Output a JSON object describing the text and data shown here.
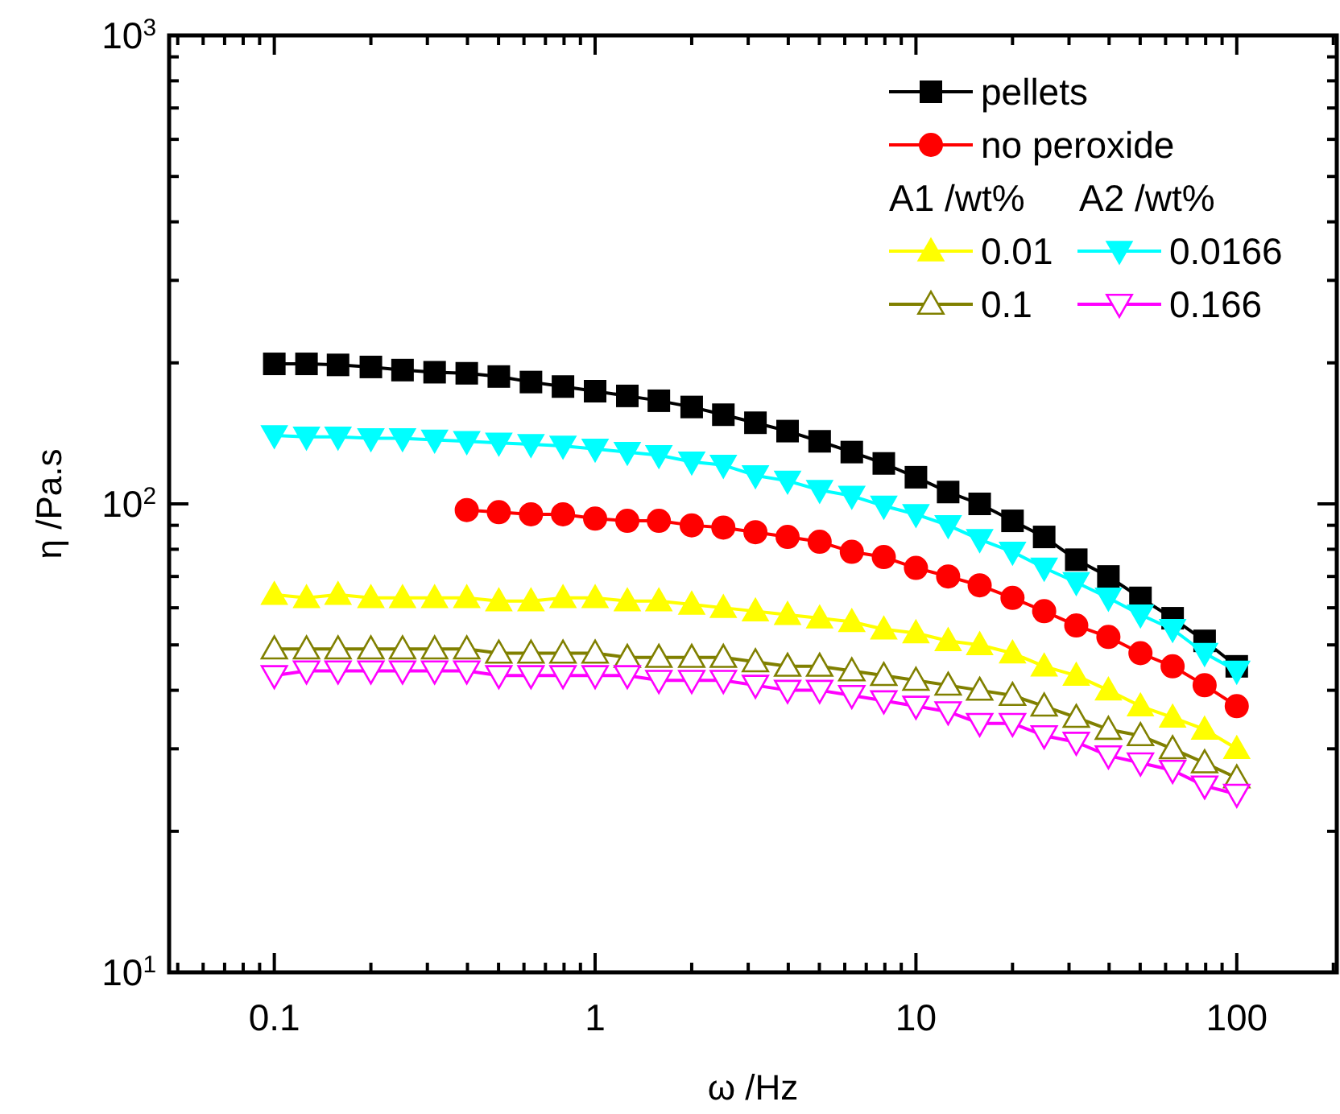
{
  "chart_data": {
    "type": "line",
    "xlabel": "ω /Hz",
    "ylabel": "η /Pa.s",
    "log": "xy",
    "legend": "top right",
    "line_style": "solid",
    "annotations": [
      "A1 /wt%",
      "A2 /wt%"
    ],
    "xlim": [
      0.047,
      205
    ],
    "ylim": [
      10,
      1000
    ],
    "xticks": [
      0.1,
      1,
      10,
      100,
      {
        "value": 0.05,
        "label": null
      },
      {
        "value": 0.06,
        "label": null
      },
      {
        "value": 0.07,
        "label": null
      },
      {
        "value": 0.08,
        "label": null
      },
      {
        "value": 0.09,
        "label": null
      },
      {
        "value": 0.2,
        "label": null
      },
      {
        "value": 0.3,
        "label": null
      },
      {
        "value": 0.4,
        "label": null
      },
      {
        "value": 0.5,
        "label": null
      },
      {
        "value": 0.6,
        "label": null
      },
      {
        "value": 0.7,
        "label": null
      },
      {
        "value": 0.8,
        "label": null
      },
      {
        "value": 0.9,
        "label": null
      },
      {
        "value": 2,
        "label": null
      },
      {
        "value": 3,
        "label": null
      },
      {
        "value": 4,
        "label": null
      },
      {
        "value": 5,
        "label": null
      },
      {
        "value": 6,
        "label": null
      },
      {
        "value": 7,
        "label": null
      },
      {
        "value": 8,
        "label": null
      },
      {
        "value": 9,
        "label": null
      },
      {
        "value": 20,
        "label": null
      },
      {
        "value": 30,
        "label": null
      },
      {
        "value": 40,
        "label": null
      },
      {
        "value": 50,
        "label": null
      },
      {
        "value": 60,
        "label": null
      },
      {
        "value": 70,
        "label": null
      },
      {
        "value": 80,
        "label": null
      },
      {
        "value": 90,
        "label": null
      },
      {
        "value": 200,
        "label": null
      }
    ],
    "yticks": [
      {
        "value": 10,
        "label": "10$^{1}$"
      },
      {
        "value": 100,
        "label": "10$^{2}$"
      },
      {
        "value": 1000,
        "label": "10$^{3}$"
      },
      {
        "value": 20,
        "label": null
      },
      {
        "value": 30,
        "label": null
      },
      {
        "value": 40,
        "label": null
      },
      {
        "value": 50,
        "label": null
      },
      {
        "value": 60,
        "label": null
      },
      {
        "value": 70,
        "label": null
      },
      {
        "value": 80,
        "label": null
      },
      {
        "value": 90,
        "label": null
      },
      {
        "value": 200,
        "label": null
      },
      {
        "value": 300,
        "label": null
      },
      {
        "value": 400,
        "label": null
      },
      {
        "value": 500,
        "label": null
      },
      {
        "value": 600,
        "label": null
      },
      {
        "value": 700,
        "label": null
      },
      {
        "value": 800,
        "label": null
      },
      {
        "value": 900,
        "label": null
      }
    ],
    "x": [
      0.1,
      0.126,
      0.158,
      0.2,
      0.251,
      0.316,
      0.398,
      0.501,
      0.631,
      0.794,
      1,
      1.26,
      1.58,
      2,
      2.51,
      3.16,
      3.98,
      5.01,
      6.31,
      7.94,
      10,
      12.6,
      15.8,
      20,
      25.1,
      31.6,
      39.8,
      50.1,
      63.1,
      79.4,
      100
    ],
    "series": [
      {
        "name": "pellets",
        "color": "#000000",
        "marker": "square",
        "values": [
          199,
          199,
          198,
          196,
          193,
          191,
          190,
          187,
          182,
          178,
          174,
          170,
          166,
          161,
          155,
          149,
          143,
          136,
          129,
          122,
          114,
          106,
          100,
          92,
          85,
          76,
          70,
          63,
          57,
          51,
          45
        ]
      },
      {
        "name": "no peroxide",
        "color": "#ff0000",
        "marker": "circle",
        "x": [
          0.398,
          0.501,
          0.631,
          0.794,
          1,
          1.26,
          1.58,
          2,
          2.51,
          3.16,
          3.98,
          5.01,
          6.31,
          7.94,
          10,
          12.6,
          15.8,
          20,
          25.1,
          31.6,
          39.8,
          50.1,
          63.1,
          79.4,
          100
        ],
        "values": [
          97,
          96,
          95,
          95,
          93,
          92,
          92,
          90,
          89,
          87,
          85,
          83,
          79,
          77,
          73,
          70,
          67,
          63,
          59,
          55,
          52,
          48,
          45,
          41,
          37
        ]
      },
      {
        "name": "0.01",
        "color": "#ffff00",
        "marker": "triangle",
        "values": [
          64,
          63,
          64,
          63,
          63,
          63,
          63,
          62,
          62,
          63,
          63,
          62,
          62,
          61,
          60,
          59,
          58,
          57,
          56,
          54,
          53,
          51,
          50,
          48,
          45,
          43,
          40,
          37,
          35,
          33,
          30
        ]
      },
      {
        "name": "0.0166",
        "color": "#00ffff",
        "marker": "triangle-down",
        "values": [
          140,
          139,
          139,
          138,
          138,
          137,
          136,
          135,
          134,
          133,
          131,
          129,
          127,
          123,
          121,
          115,
          112,
          107,
          104,
          99,
          95,
          90,
          84,
          79,
          73,
          68,
          63,
          58,
          54,
          48,
          44
        ]
      },
      {
        "name": "0.1",
        "color": "#808000",
        "marker": "triangle-open",
        "values": [
          49,
          49,
          49,
          49,
          49,
          49,
          49,
          48,
          48,
          48,
          48,
          47,
          47,
          47,
          47,
          46,
          45,
          45,
          44,
          43,
          42,
          41,
          40,
          39,
          37,
          35,
          33,
          32,
          30,
          28,
          26
        ]
      },
      {
        "name": "0.166",
        "color": "#ff00ff",
        "marker": "triangle-down-open",
        "values": [
          43,
          44,
          44,
          44,
          44,
          44,
          44,
          43,
          43,
          43,
          43,
          43,
          42,
          42,
          42,
          41,
          40,
          40,
          39,
          38,
          37,
          36,
          34,
          34,
          32,
          31,
          29,
          28,
          27,
          25,
          24
        ]
      }
    ]
  }
}
